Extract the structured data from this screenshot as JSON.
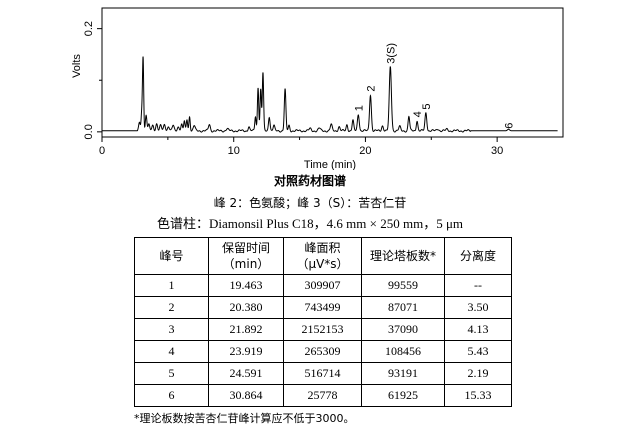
{
  "chart_data": {
    "type": "line",
    "title": "",
    "xlabel": "Time (min)",
    "ylabel": "Volts",
    "xlim": [
      0,
      35
    ],
    "ylim": [
      -0.01,
      0.24
    ],
    "x_ticks": [
      0,
      10,
      20,
      30
    ],
    "y_ticks": [
      0.0,
      0.2
    ],
    "x_tick_labels": [
      "0",
      "10",
      "20",
      "30"
    ],
    "y_tick_labels": [
      "0.0",
      "0.2"
    ],
    "grid": false,
    "baseline": 0.002,
    "line_color": "#000000",
    "peaks": [
      {
        "t": 2.85,
        "h": 0.015,
        "w": 0.06
      },
      {
        "t": 3.02,
        "h": 0.035,
        "w": 0.05
      },
      {
        "t": 3.12,
        "h": 0.14,
        "w": 0.045
      },
      {
        "t": 3.35,
        "h": 0.03,
        "w": 0.06
      },
      {
        "t": 3.55,
        "h": 0.012,
        "w": 0.06
      },
      {
        "t": 3.85,
        "h": 0.01,
        "w": 0.07
      },
      {
        "t": 4.15,
        "h": 0.014,
        "w": 0.07
      },
      {
        "t": 4.45,
        "h": 0.01,
        "w": 0.07
      },
      {
        "t": 4.75,
        "h": 0.012,
        "w": 0.07
      },
      {
        "t": 5.05,
        "h": 0.009,
        "w": 0.07
      },
      {
        "t": 5.4,
        "h": 0.01,
        "w": 0.07
      },
      {
        "t": 5.8,
        "h": 0.008,
        "w": 0.08
      },
      {
        "t": 6.05,
        "h": 0.012,
        "w": 0.06
      },
      {
        "t": 6.25,
        "h": 0.018,
        "w": 0.05
      },
      {
        "t": 6.45,
        "h": 0.022,
        "w": 0.05
      },
      {
        "t": 6.65,
        "h": 0.028,
        "w": 0.05
      },
      {
        "t": 7.0,
        "h": 0.01,
        "w": 0.07
      },
      {
        "t": 8.15,
        "h": 0.012,
        "w": 0.07
      },
      {
        "t": 9.5,
        "h": 0.004,
        "w": 0.08
      },
      {
        "t": 11.15,
        "h": 0.008,
        "w": 0.06
      },
      {
        "t": 11.65,
        "h": 0.028,
        "w": 0.05
      },
      {
        "t": 11.85,
        "h": 0.085,
        "w": 0.05
      },
      {
        "t": 12.05,
        "h": 0.08,
        "w": 0.05
      },
      {
        "t": 12.22,
        "h": 0.112,
        "w": 0.05
      },
      {
        "t": 12.7,
        "h": 0.028,
        "w": 0.06
      },
      {
        "t": 13.05,
        "h": 0.01,
        "w": 0.06
      },
      {
        "t": 13.9,
        "h": 0.08,
        "w": 0.06
      },
      {
        "t": 14.2,
        "h": 0.01,
        "w": 0.06
      },
      {
        "t": 15.8,
        "h": 0.004,
        "w": 0.08
      },
      {
        "t": 16.5,
        "h": 0.005,
        "w": 0.08
      },
      {
        "t": 17.4,
        "h": 0.012,
        "w": 0.07
      },
      {
        "t": 18.0,
        "h": 0.008,
        "w": 0.07
      },
      {
        "t": 18.6,
        "h": 0.012,
        "w": 0.06
      },
      {
        "t": 19.05,
        "h": 0.02,
        "w": 0.06
      },
      {
        "t": 19.463,
        "h": 0.032,
        "w": 0.07
      },
      {
        "t": 20.38,
        "h": 0.07,
        "w": 0.07
      },
      {
        "t": 21.3,
        "h": 0.01,
        "w": 0.07
      },
      {
        "t": 21.892,
        "h": 0.124,
        "w": 0.08
      },
      {
        "t": 22.6,
        "h": 0.008,
        "w": 0.07
      },
      {
        "t": 23.3,
        "h": 0.028,
        "w": 0.06
      },
      {
        "t": 23.919,
        "h": 0.02,
        "w": 0.06
      },
      {
        "t": 24.591,
        "h": 0.035,
        "w": 0.07
      },
      {
        "t": 25.5,
        "h": 0.004,
        "w": 0.08
      },
      {
        "t": 26.2,
        "h": 0.003,
        "w": 0.08
      },
      {
        "t": 30.864,
        "h": 0.003,
        "w": 0.08
      }
    ],
    "peak_labels": [
      {
        "label": "1",
        "t": 19.463,
        "y": 0.04
      },
      {
        "label": "2",
        "t": 20.38,
        "y": 0.078
      },
      {
        "label": "3(S)",
        "t": 21.892,
        "y": 0.132
      },
      {
        "label": "4",
        "t": 23.919,
        "y": 0.028
      },
      {
        "label": "5",
        "t": 24.591,
        "y": 0.043
      },
      {
        "label": "6",
        "t": 30.864,
        "y": 0.006
      }
    ]
  },
  "captions": {
    "title": "对照药材图谱",
    "peaks_line": "峰 2：色氨酸；峰 3（S）：苦杏仁苷",
    "column_line": "色谱柱：Diamonsil Plus C18，4.6 mm × 250 mm，5 μm"
  },
  "table": {
    "headers": [
      "峰号",
      "保留时间\n（min）",
      "峰面积\n（μV*s）",
      "理论塔板数*",
      "分离度"
    ],
    "rows": [
      [
        "1",
        "19.463",
        "309907",
        "99559",
        "--"
      ],
      [
        "2",
        "20.380",
        "743499",
        "87071",
        "3.50"
      ],
      [
        "3",
        "21.892",
        "2152153",
        "37090",
        "4.13"
      ],
      [
        "4",
        "23.919",
        "265309",
        "108456",
        "5.43"
      ],
      [
        "5",
        "24.591",
        "516714",
        "93191",
        "2.19"
      ],
      [
        "6",
        "30.864",
        "25778",
        "61925",
        "15.33"
      ]
    ]
  },
  "footnote": "*理论板数按苦杏仁苷峰计算应不低于3000。"
}
